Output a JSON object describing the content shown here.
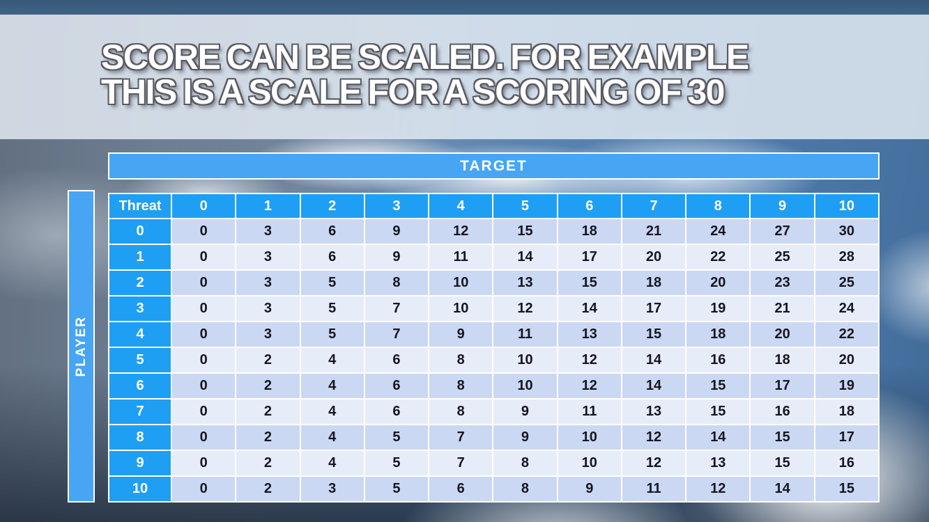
{
  "title": {
    "line1": "SCORE CAN BE SCALED. FOR EXAMPLE",
    "line2": "THIS IS A SCALE FOR A SCORING OF 30"
  },
  "matrix": {
    "top_axis_label": "TARGET",
    "left_axis_label": "PLAYER",
    "corner_label": "Threat",
    "column_headers": [
      "0",
      "1",
      "2",
      "3",
      "4",
      "5",
      "6",
      "7",
      "8",
      "9",
      "10"
    ],
    "rows": [
      {
        "threat": "0",
        "values": [
          0,
          3,
          6,
          9,
          12,
          15,
          18,
          21,
          24,
          27,
          30
        ]
      },
      {
        "threat": "1",
        "values": [
          0,
          3,
          6,
          9,
          11,
          14,
          17,
          20,
          22,
          25,
          28
        ]
      },
      {
        "threat": "2",
        "values": [
          0,
          3,
          5,
          8,
          10,
          13,
          15,
          18,
          20,
          23,
          25
        ]
      },
      {
        "threat": "3",
        "values": [
          0,
          3,
          5,
          7,
          10,
          12,
          14,
          17,
          19,
          21,
          24
        ]
      },
      {
        "threat": "4",
        "values": [
          0,
          3,
          5,
          7,
          9,
          11,
          13,
          15,
          18,
          20,
          22
        ]
      },
      {
        "threat": "5",
        "values": [
          0,
          2,
          4,
          6,
          8,
          10,
          12,
          14,
          16,
          18,
          20
        ]
      },
      {
        "threat": "6",
        "values": [
          0,
          2,
          4,
          6,
          8,
          10,
          12,
          14,
          15,
          17,
          19
        ]
      },
      {
        "threat": "7",
        "values": [
          0,
          2,
          4,
          6,
          8,
          9,
          11,
          13,
          15,
          16,
          18
        ]
      },
      {
        "threat": "8",
        "values": [
          0,
          2,
          4,
          5,
          7,
          9,
          10,
          12,
          14,
          15,
          17
        ]
      },
      {
        "threat": "9",
        "values": [
          0,
          2,
          4,
          5,
          7,
          8,
          10,
          12,
          13,
          15,
          16
        ]
      },
      {
        "threat": "10",
        "values": [
          0,
          2,
          3,
          5,
          6,
          8,
          9,
          11,
          12,
          14,
          15
        ]
      }
    ]
  },
  "colors": {
    "header_blue": "#1f9ff3",
    "band_blue": "#47a5f3",
    "row_even": "#cbd8f3",
    "row_odd": "#e7ecf9"
  }
}
